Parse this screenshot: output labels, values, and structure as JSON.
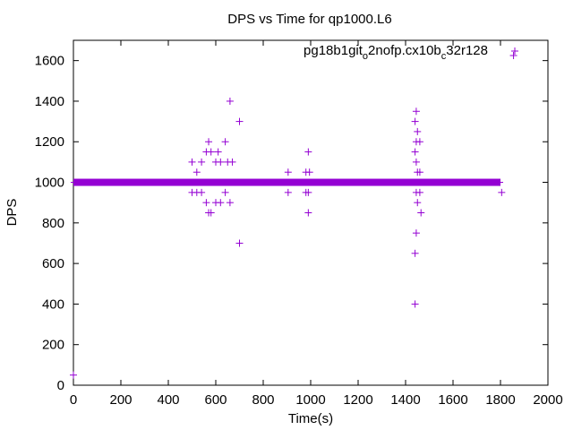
{
  "chart_data": {
    "type": "scatter",
    "title": "DPS vs Time for qp1000.L6",
    "xlabel": "Time(s)",
    "ylabel": "DPS",
    "xlim": [
      0,
      2000
    ],
    "ylim": [
      0,
      1700
    ],
    "x_ticks": [
      0,
      200,
      400,
      600,
      800,
      1000,
      1200,
      1400,
      1600,
      1800,
      2000
    ],
    "y_ticks": [
      0,
      200,
      400,
      600,
      800,
      1000,
      1200,
      1400,
      1600
    ],
    "grid": false,
    "legend_position": "top-right",
    "marker": "plus",
    "color": "#9400d3",
    "series": [
      {
        "name_parts": [
          "pg18b1git",
          "o",
          "2nofp.cx10b",
          "c",
          "32r128"
        ],
        "baseline": {
          "x_start": 0,
          "x_end": 1800,
          "y": 1000
        },
        "points": [
          [
            0,
            50
          ],
          [
            500,
            1100
          ],
          [
            520,
            1050
          ],
          [
            540,
            1100
          ],
          [
            560,
            1150
          ],
          [
            570,
            1200
          ],
          [
            580,
            1150
          ],
          [
            600,
            1100
          ],
          [
            610,
            1150
          ],
          [
            620,
            1100
          ],
          [
            640,
            1200
          ],
          [
            650,
            1100
          ],
          [
            660,
            1400
          ],
          [
            670,
            1100
          ],
          [
            700,
            1300
          ],
          [
            500,
            950
          ],
          [
            520,
            950
          ],
          [
            540,
            950
          ],
          [
            560,
            900
          ],
          [
            570,
            850
          ],
          [
            580,
            850
          ],
          [
            600,
            900
          ],
          [
            620,
            900
          ],
          [
            640,
            950
          ],
          [
            660,
            900
          ],
          [
            700,
            700
          ],
          [
            905,
            1050
          ],
          [
            905,
            950
          ],
          [
            980,
            1050
          ],
          [
            990,
            1150
          ],
          [
            995,
            1050
          ],
          [
            980,
            950
          ],
          [
            990,
            950
          ],
          [
            990,
            850
          ],
          [
            1440,
            1300
          ],
          [
            1445,
            1350
          ],
          [
            1450,
            1250
          ],
          [
            1445,
            1200
          ],
          [
            1460,
            1200
          ],
          [
            1440,
            1150
          ],
          [
            1445,
            1100
          ],
          [
            1450,
            1050
          ],
          [
            1460,
            1050
          ],
          [
            1445,
            950
          ],
          [
            1450,
            900
          ],
          [
            1460,
            950
          ],
          [
            1465,
            850
          ],
          [
            1445,
            750
          ],
          [
            1440,
            650
          ],
          [
            1440,
            400
          ],
          [
            1805,
            950
          ],
          [
            1855,
            1625
          ]
        ]
      }
    ]
  }
}
